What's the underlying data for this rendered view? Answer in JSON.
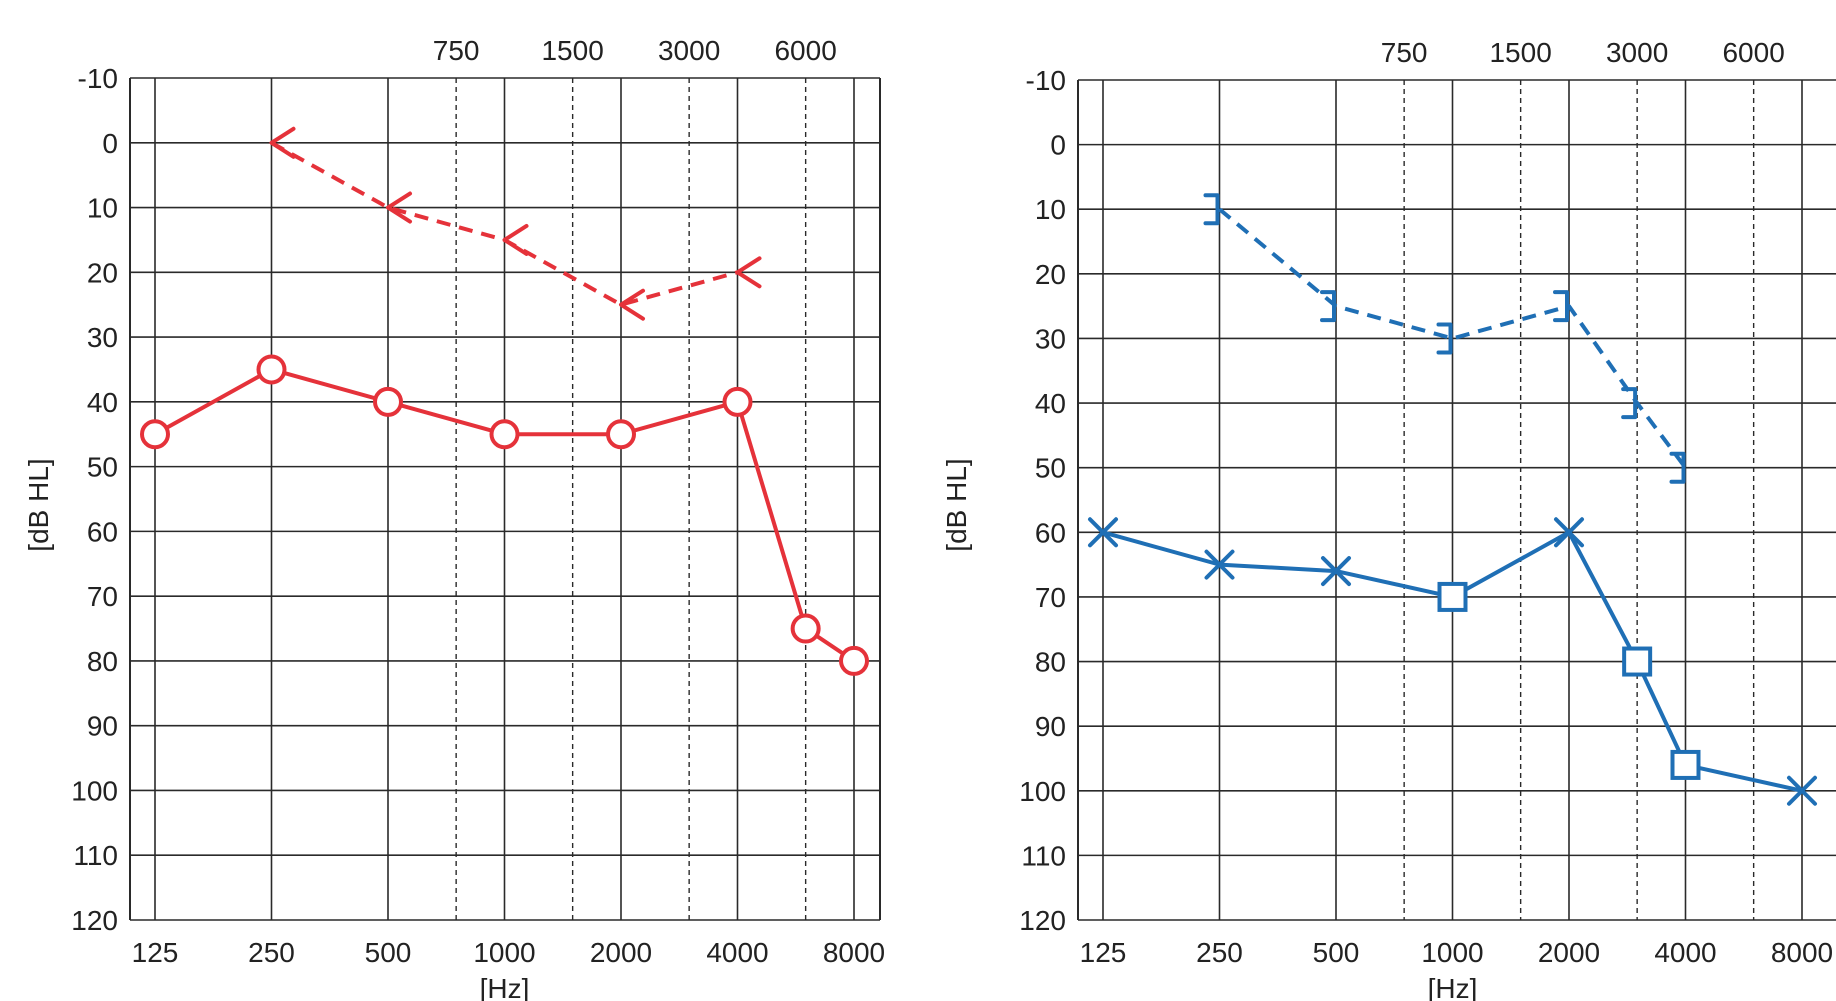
{
  "chart_data": [
    {
      "type": "line",
      "ylabel": "[dB HL]",
      "xlabel": "[Hz]",
      "x_categories": [
        "125",
        "250",
        "500",
        "1000",
        "2000",
        "4000",
        "8000"
      ],
      "x_top_labels": [
        "750",
        "1500",
        "3000",
        "6000"
      ],
      "y_ticks": [
        "-10",
        "0",
        "10",
        "20",
        "30",
        "40",
        "50",
        "60",
        "70",
        "80",
        "90",
        "100",
        "110",
        "120"
      ],
      "ylim": [
        -10,
        120
      ],
      "y_inverted": true,
      "grid": true,
      "color": "#e5323a",
      "series": [
        {
          "marker": "bone-conduction-right",
          "line_style": "dashed",
          "points": [
            {
              "x": 250,
              "y": 0
            },
            {
              "x": 500,
              "y": 10
            },
            {
              "x": 1000,
              "y": 15
            },
            {
              "x": 2000,
              "y": 25
            },
            {
              "x": 4000,
              "y": 20
            }
          ]
        },
        {
          "marker": "circle",
          "line_style": "solid",
          "points": [
            {
              "x": 125,
              "y": 45
            },
            {
              "x": 250,
              "y": 35
            },
            {
              "x": 500,
              "y": 40
            },
            {
              "x": 1000,
              "y": 45
            },
            {
              "x": 2000,
              "y": 45
            },
            {
              "x": 4000,
              "y": 40
            },
            {
              "x": 6000,
              "y": 75
            },
            {
              "x": 8000,
              "y": 80
            }
          ]
        }
      ]
    },
    {
      "type": "line",
      "ylabel": "[dB HL]",
      "xlabel": "[Hz]",
      "x_categories": [
        "125",
        "250",
        "500",
        "1000",
        "2000",
        "4000",
        "8000"
      ],
      "x_top_labels": [
        "750",
        "1500",
        "3000",
        "6000"
      ],
      "y_ticks": [
        "-10",
        "0",
        "10",
        "20",
        "30",
        "40",
        "50",
        "60",
        "70",
        "80",
        "90",
        "100",
        "110",
        "120"
      ],
      "ylim": [
        -10,
        120
      ],
      "y_inverted": true,
      "grid": true,
      "color": "#1f6fb5",
      "series": [
        {
          "marker": "masked-bone-conduction-left",
          "line_style": "dashed",
          "points": [
            {
              "x": 250,
              "y": 10
            },
            {
              "x": 500,
              "y": 25
            },
            {
              "x": 1000,
              "y": 30
            },
            {
              "x": 2000,
              "y": 25
            },
            {
              "x": 3000,
              "y": 40
            },
            {
              "x": 4000,
              "y": 50
            }
          ]
        },
        {
          "marker": "cross",
          "line_style": "solid",
          "points": [
            {
              "x": 125,
              "y": 60,
              "marker": "cross"
            },
            {
              "x": 250,
              "y": 65,
              "marker": "cross"
            },
            {
              "x": 500,
              "y": 66,
              "marker": "cross"
            },
            {
              "x": 1000,
              "y": 70,
              "marker": "square"
            },
            {
              "x": 2000,
              "y": 60,
              "marker": "cross"
            },
            {
              "x": 3000,
              "y": 80,
              "marker": "square"
            },
            {
              "x": 4000,
              "y": 96,
              "marker": "square"
            },
            {
              "x": 8000,
              "y": 100,
              "marker": "cross"
            }
          ]
        }
      ]
    }
  ]
}
